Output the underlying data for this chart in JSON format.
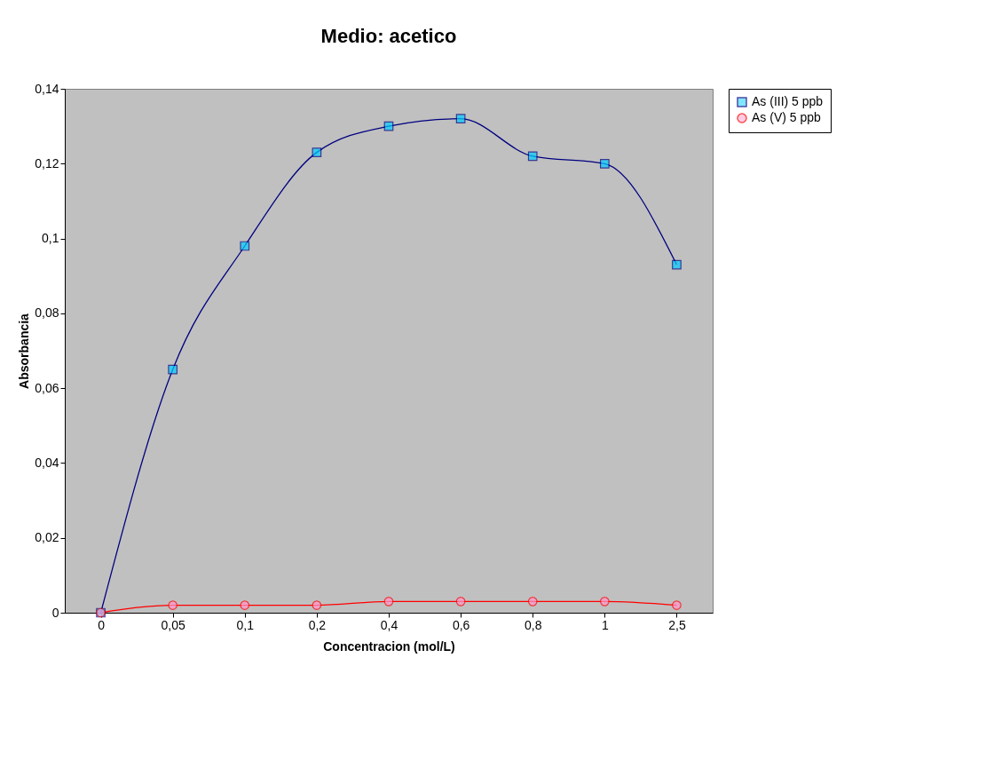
{
  "chart_data": {
    "type": "line",
    "title": "Medio: acetico",
    "xlabel": "Concentracion (mol/L)",
    "ylabel": "Absorbancia",
    "categories": [
      "0",
      "0,05",
      "0,1",
      "0,2",
      "0,4",
      "0,6",
      "0,8",
      "1",
      "2,5"
    ],
    "series": [
      {
        "name": "As (III) 5 ppb",
        "color": "#000080",
        "marker": "square",
        "values": [
          0,
          0.065,
          0.098,
          0.123,
          0.13,
          0.132,
          0.122,
          0.12,
          0.093
        ]
      },
      {
        "name": "As (V) 5 ppb",
        "color": "#ff0000",
        "marker": "circle",
        "values": [
          0,
          0.002,
          0.002,
          0.002,
          0.003,
          0.003,
          0.003,
          0.003,
          0.002
        ]
      }
    ],
    "ylim": [
      0,
      0.14
    ],
    "yticks": [
      0,
      {
        "value": 0.02,
        "label": "0,02"
      },
      {
        "value": 0.04,
        "label": "0,04"
      },
      {
        "value": 0.06,
        "label": "0,06"
      },
      {
        "value": 0.08,
        "label": "0,08"
      },
      {
        "value": 0.1,
        "label": "0,1"
      },
      {
        "value": 0.12,
        "label": "0,12"
      },
      {
        "value": 0.14,
        "label": "0,14"
      }
    ],
    "grid": false,
    "legend": "right",
    "line_style": "solid"
  }
}
